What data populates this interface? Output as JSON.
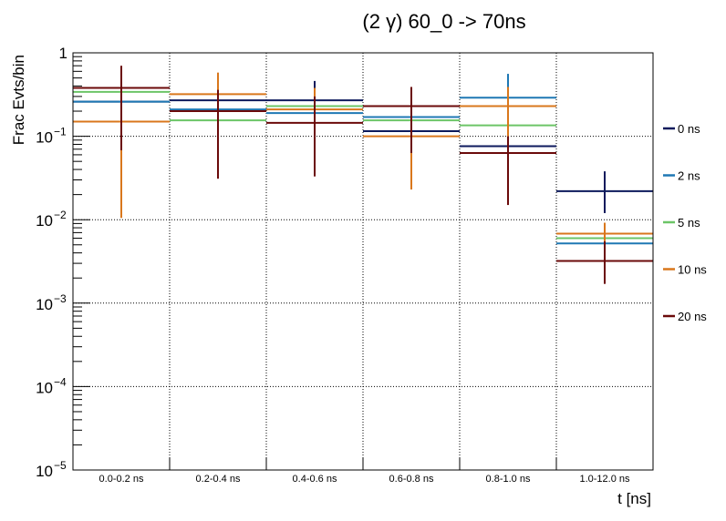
{
  "chart_data": {
    "type": "line",
    "title": "(2 γ) 60_0 -> 70ns",
    "xlabel": "t [ns]",
    "ylabel": "Frac Evts/bin",
    "y_scale": "log",
    "ylim": [
      1e-05,
      1
    ],
    "grid": true,
    "legend_position": "right",
    "categories": [
      "0.0-0.2 ns",
      "0.2-0.4 ns",
      "0.4-0.6 ns",
      "0.6-0.8 ns",
      "0.8-1.0 ns",
      "1.0-12.0 ns"
    ],
    "y_ticks": [
      {
        "value": 1e-05,
        "base": "10",
        "exp": "−5"
      },
      {
        "value": 0.0001,
        "base": "10",
        "exp": "−4"
      },
      {
        "value": 0.001,
        "base": "10",
        "exp": "−3"
      },
      {
        "value": 0.01,
        "base": "10",
        "exp": "−2"
      },
      {
        "value": 0.1,
        "base": "10",
        "exp": "−1"
      },
      {
        "value": 1,
        "base": "1",
        "exp": ""
      }
    ],
    "series": [
      {
        "name": "0 ns",
        "color": "#0d1a5c",
        "values": [
          0.26,
          0.27,
          0.27,
          0.115,
          0.076,
          0.022
        ],
        "err_low": [
          0.26,
          0.27,
          0.27,
          0.115,
          0.076,
          0.012
        ],
        "err_high": [
          0.26,
          0.27,
          0.46,
          0.115,
          0.076,
          0.038
        ]
      },
      {
        "name": "2 ns",
        "color": "#1f78b4",
        "values": [
          0.26,
          0.21,
          0.19,
          0.17,
          0.29,
          0.0052
        ],
        "err_low": [
          0.26,
          0.21,
          0.19,
          0.17,
          0.29,
          0.0052
        ],
        "err_high": [
          0.26,
          0.21,
          0.19,
          0.17,
          0.56,
          0.0052
        ]
      },
      {
        "name": "5 ns",
        "color": "#6cc567",
        "values": [
          0.34,
          0.155,
          0.23,
          0.155,
          0.135,
          0.006
        ],
        "err_low": [
          0.34,
          0.155,
          0.23,
          0.155,
          0.135,
          0.006
        ],
        "err_high": [
          0.34,
          0.155,
          0.23,
          0.155,
          0.135,
          0.006
        ]
      },
      {
        "name": "10 ns",
        "color": "#d9771c",
        "values": [
          0.15,
          0.32,
          0.21,
          0.1,
          0.23,
          0.0068
        ],
        "err_low": [
          0.0105,
          0.2,
          0.21,
          0.023,
          0.1,
          0.0055
        ],
        "err_high": [
          0.15,
          0.58,
          0.38,
          0.1,
          0.39,
          0.0092
        ]
      },
      {
        "name": "20 ns",
        "color": "#6b0a0a",
        "values": [
          0.38,
          0.2,
          0.145,
          0.23,
          0.063,
          0.0032
        ],
        "err_low": [
          0.068,
          0.031,
          0.033,
          0.063,
          0.015,
          0.0017
        ],
        "err_high": [
          0.7,
          0.36,
          0.3,
          0.39,
          0.1,
          0.0055
        ]
      }
    ]
  }
}
